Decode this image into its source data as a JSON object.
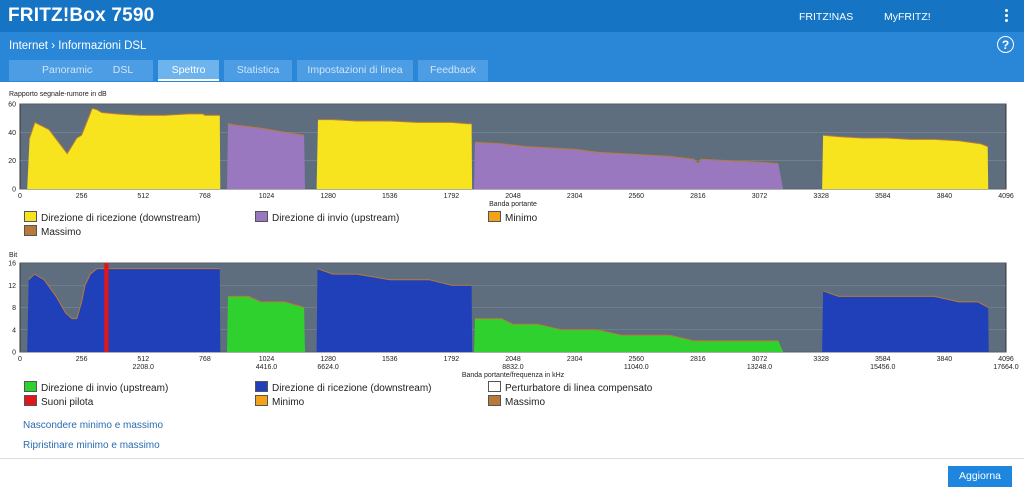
{
  "app": {
    "title": "FRITZ!Box 7590",
    "nav": {
      "fritznas": "FRITZ!NAS",
      "myfritz": "MyFRITZ!"
    },
    "menu_icon": "kebab-menu-icon"
  },
  "breadcrumb": {
    "parent": "Internet",
    "separator": "›",
    "current": "Informazioni DSL"
  },
  "help": {
    "label": "?",
    "icon": "help-icon"
  },
  "tabs": [
    {
      "label": "Panoramica",
      "active": false
    },
    {
      "label": "DSL",
      "active": false
    },
    {
      "label": "Spettro",
      "active": true
    },
    {
      "label": "Statistica",
      "active": false
    },
    {
      "label": "Impostazioni di linea",
      "active": false
    },
    {
      "label": "Feedback",
      "active": false
    }
  ],
  "colors": {
    "plot_bg": "#5e6e7e",
    "downstream_snr": "#f7e31e",
    "upstream_snr": "#9a78c0",
    "minimo": "#f5a21b",
    "massimo": "#b87a3a",
    "upstream_bits": "#2fd12f",
    "downstream_bits": "#1f40b8",
    "pilot": "#e0161c"
  },
  "chart_data": [
    {
      "type": "area",
      "title": "Rapporto segnale-rumore in dB",
      "xlabel": "Banda portante",
      "xlim": [
        0,
        4096
      ],
      "ylim": [
        0,
        60
      ],
      "xticks": [
        0,
        256,
        512,
        768,
        1024,
        1280,
        1536,
        1792,
        2048,
        2304,
        2560,
        2816,
        3072,
        3328,
        3584,
        3840,
        4096
      ],
      "yticks": [
        0,
        20,
        40,
        60
      ],
      "series": [
        {
          "name": "Direzione di ricezione (downstream)",
          "kind": "downstream",
          "segments": [
            [
              [
                30,
                0
              ],
              [
                40,
                36
              ],
              [
                62,
                47
              ],
              [
                120,
                42
              ],
              [
                196,
                25
              ],
              [
                236,
                36
              ],
              [
                256,
                38
              ],
              [
                300,
                57
              ],
              [
                320,
                56
              ],
              [
                340,
                54
              ],
              [
                400,
                53
              ],
              [
                500,
                52
              ],
              [
                600,
                52
              ],
              [
                700,
                53
              ],
              [
                760,
                53
              ],
              [
                768,
                52
              ],
              [
                830,
                52
              ],
              [
                832,
                0
              ]
            ],
            [
              [
                1232,
                0
              ],
              [
                1238,
                49
              ],
              [
                1300,
                49
              ],
              [
                1400,
                48
              ],
              [
                1536,
                48
              ],
              [
                1650,
                47
              ],
              [
                1792,
                47
              ],
              [
                1860,
                46
              ],
              [
                1876,
                46
              ],
              [
                1878,
                0
              ]
            ],
            [
              [
                2818,
                0
              ],
              [
                2820,
                8
              ],
              [
                2822,
                0
              ]
            ],
            [
              [
                3332,
                0
              ],
              [
                3336,
                38
              ],
              [
                3400,
                37
              ],
              [
                3500,
                36
              ],
              [
                3600,
                36
              ],
              [
                3700,
                35
              ],
              [
                3800,
                35
              ],
              [
                3900,
                34
              ],
              [
                3990,
                32
              ],
              [
                4020,
                30
              ],
              [
                4022,
                0
              ]
            ]
          ]
        },
        {
          "name": "Direzione di invio (upstream)",
          "kind": "upstream",
          "segments": [
            [
              [
                860,
                0
              ],
              [
                864,
                46
              ],
              [
                900,
                45
              ],
              [
                1000,
                43
              ],
              [
                1100,
                40
              ],
              [
                1180,
                38
              ],
              [
                1184,
                0
              ]
            ],
            [
              [
                1886,
                0
              ],
              [
                1890,
                33
              ],
              [
                2000,
                32
              ],
              [
                2100,
                30
              ],
              [
                2200,
                29
              ],
              [
                2304,
                28
              ],
              [
                2400,
                26
              ],
              [
                2500,
                25
              ],
              [
                2600,
                24
              ],
              [
                2700,
                23
              ],
              [
                2800,
                21
              ],
              [
                2816,
                18
              ],
              [
                2830,
                21
              ],
              [
                2950,
                20
              ],
              [
                3072,
                19
              ],
              [
                3150,
                18
              ],
              [
                3170,
                0
              ]
            ]
          ]
        }
      ],
      "legend": [
        {
          "label": "Direzione di ricezione (downstream)",
          "color_key": "downstream_snr"
        },
        {
          "label": "Direzione di invio (upstream)",
          "color_key": "upstream_snr"
        },
        {
          "label": "Minimo",
          "color_key": "minimo"
        },
        {
          "label": "Massimo",
          "color_key": "massimo"
        }
      ],
      "legend_position": "bottom",
      "grid": true
    },
    {
      "type": "area",
      "title": "Bit",
      "xlabel": "Banda portante/frequenza in kHz",
      "xlim": [
        0,
        4096
      ],
      "ylim": [
        0,
        16
      ],
      "xticks": [
        0,
        256,
        512,
        768,
        1024,
        1280,
        1536,
        1792,
        2048,
        2304,
        2560,
        2816,
        3072,
        3328,
        3584,
        3840,
        4096
      ],
      "freq_labels": {
        "512": "2208.0",
        "1024": "4416.0",
        "1280": "6624.0",
        "2048": "8832.0",
        "2560": "11040.0",
        "3072": "13248.0",
        "3584": "15456.0",
        "4096": "17664.0"
      },
      "yticks": [
        0,
        4,
        8,
        12,
        16
      ],
      "series": [
        {
          "name": "Direzione di ricezione (downstream)",
          "kind": "down_bits",
          "segments": [
            [
              [
                30,
                0
              ],
              [
                36,
                13
              ],
              [
                60,
                14
              ],
              [
                100,
                13
              ],
              [
                150,
                10
              ],
              [
                190,
                7
              ],
              [
                216,
                6
              ],
              [
                236,
                6
              ],
              [
                256,
                9
              ],
              [
                270,
                12
              ],
              [
                292,
                14
              ],
              [
                320,
                15
              ],
              [
                400,
                15
              ],
              [
                500,
                15
              ],
              [
                600,
                15
              ],
              [
                700,
                15
              ],
              [
                768,
                15
              ],
              [
                830,
                15
              ],
              [
                832,
                0
              ]
            ],
            [
              [
                1232,
                0
              ],
              [
                1236,
                15
              ],
              [
                1300,
                14
              ],
              [
                1400,
                14
              ],
              [
                1536,
                13
              ],
              [
                1600,
                13
              ],
              [
                1700,
                13
              ],
              [
                1792,
                12
              ],
              [
                1876,
                12
              ],
              [
                1878,
                0
              ]
            ],
            [
              [
                2800,
                0
              ],
              [
                2804,
                2
              ],
              [
                2812,
                2
              ],
              [
                2816,
                0
              ]
            ],
            [
              [
                3332,
                0
              ],
              [
                3336,
                11
              ],
              [
                3400,
                10
              ],
              [
                3500,
                10
              ],
              [
                3600,
                10
              ],
              [
                3700,
                10
              ],
              [
                3800,
                10
              ],
              [
                3900,
                9
              ],
              [
                3980,
                9
              ],
              [
                4022,
                8
              ],
              [
                4024,
                0
              ]
            ]
          ]
        },
        {
          "name": "Direzione di invio (upstream)",
          "kind": "up_bits",
          "segments": [
            [
              [
                860,
                0
              ],
              [
                864,
                10
              ],
              [
                950,
                10
              ],
              [
                1000,
                9
              ],
              [
                1100,
                9
              ],
              [
                1180,
                8
              ],
              [
                1184,
                0
              ]
            ],
            [
              [
                1886,
                0
              ],
              [
                1890,
                6
              ],
              [
                2000,
                6
              ],
              [
                2048,
                5
              ],
              [
                2150,
                5
              ],
              [
                2250,
                4
              ],
              [
                2304,
                4
              ],
              [
                2400,
                4
              ],
              [
                2500,
                3
              ],
              [
                2600,
                3
              ],
              [
                2700,
                3
              ],
              [
                2800,
                2
              ],
              [
                2900,
                2
              ],
              [
                3000,
                2
              ],
              [
                3072,
                2
              ],
              [
                3150,
                2
              ],
              [
                3170,
                0
              ]
            ]
          ]
        },
        {
          "name": "Suoni pilota",
          "kind": "pilot",
          "x": 350,
          "width": 18
        }
      ],
      "legend": [
        {
          "label": "Direzione di invio (upstream)",
          "color_key": "upstream_bits"
        },
        {
          "label": "Direzione di ricezione (downstream)",
          "color_key": "downstream_bits"
        },
        {
          "label": "Perturbatore di linea compensato",
          "color_key": "white"
        },
        {
          "label": "Suoni pilota",
          "color_key": "pilot"
        },
        {
          "label": "Minimo",
          "color_key": "minimo"
        },
        {
          "label": "Massimo",
          "color_key": "massimo"
        }
      ],
      "legend_position": "bottom",
      "grid": true
    }
  ],
  "links": {
    "hide": "Nascondere minimo e massimo",
    "reset": "Ripristinare minimo e massimo"
  },
  "buttons": {
    "refresh": "Aggiorna"
  }
}
